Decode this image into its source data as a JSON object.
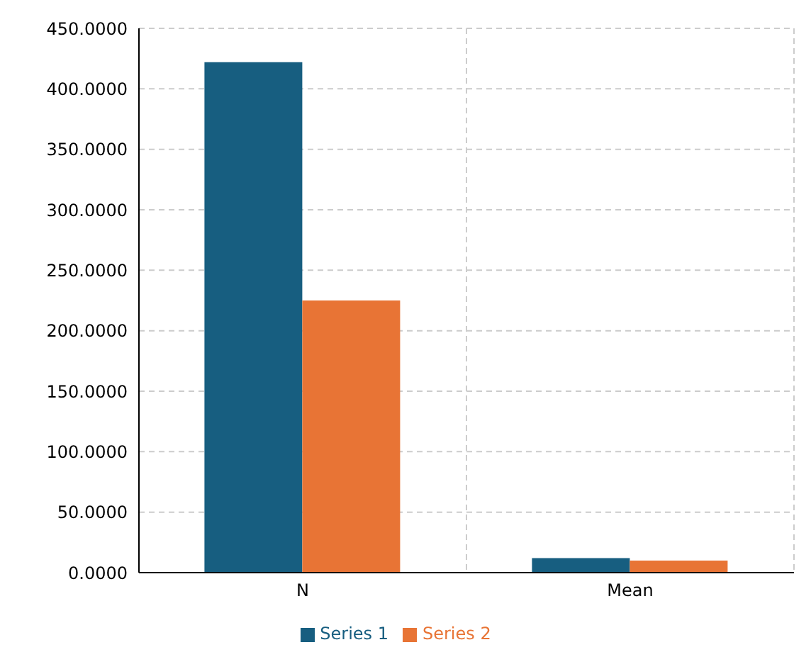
{
  "chart_data": {
    "type": "bar",
    "categories": [
      "N",
      "Mean"
    ],
    "series": [
      {
        "name": "Series 1",
        "color": "#175e80",
        "values": [
          422,
          12
        ]
      },
      {
        "name": "Series 2",
        "color": "#e87435",
        "values": [
          225,
          10
        ]
      }
    ],
    "ylim": [
      0,
      450
    ],
    "yticks": [
      {
        "value": 0,
        "label": "0.0000"
      },
      {
        "value": 50,
        "label": "50.0000"
      },
      {
        "value": 100,
        "label": "100.0000"
      },
      {
        "value": 150,
        "label": "150.0000"
      },
      {
        "value": 200,
        "label": "200.0000"
      },
      {
        "value": 250,
        "label": "250.0000"
      },
      {
        "value": 300,
        "label": "300.0000"
      },
      {
        "value": 350,
        "label": "350.0000"
      },
      {
        "value": 400,
        "label": "400.0000"
      },
      {
        "value": 450,
        "label": "450.0000"
      }
    ],
    "grid": true,
    "legend": "bottom"
  }
}
